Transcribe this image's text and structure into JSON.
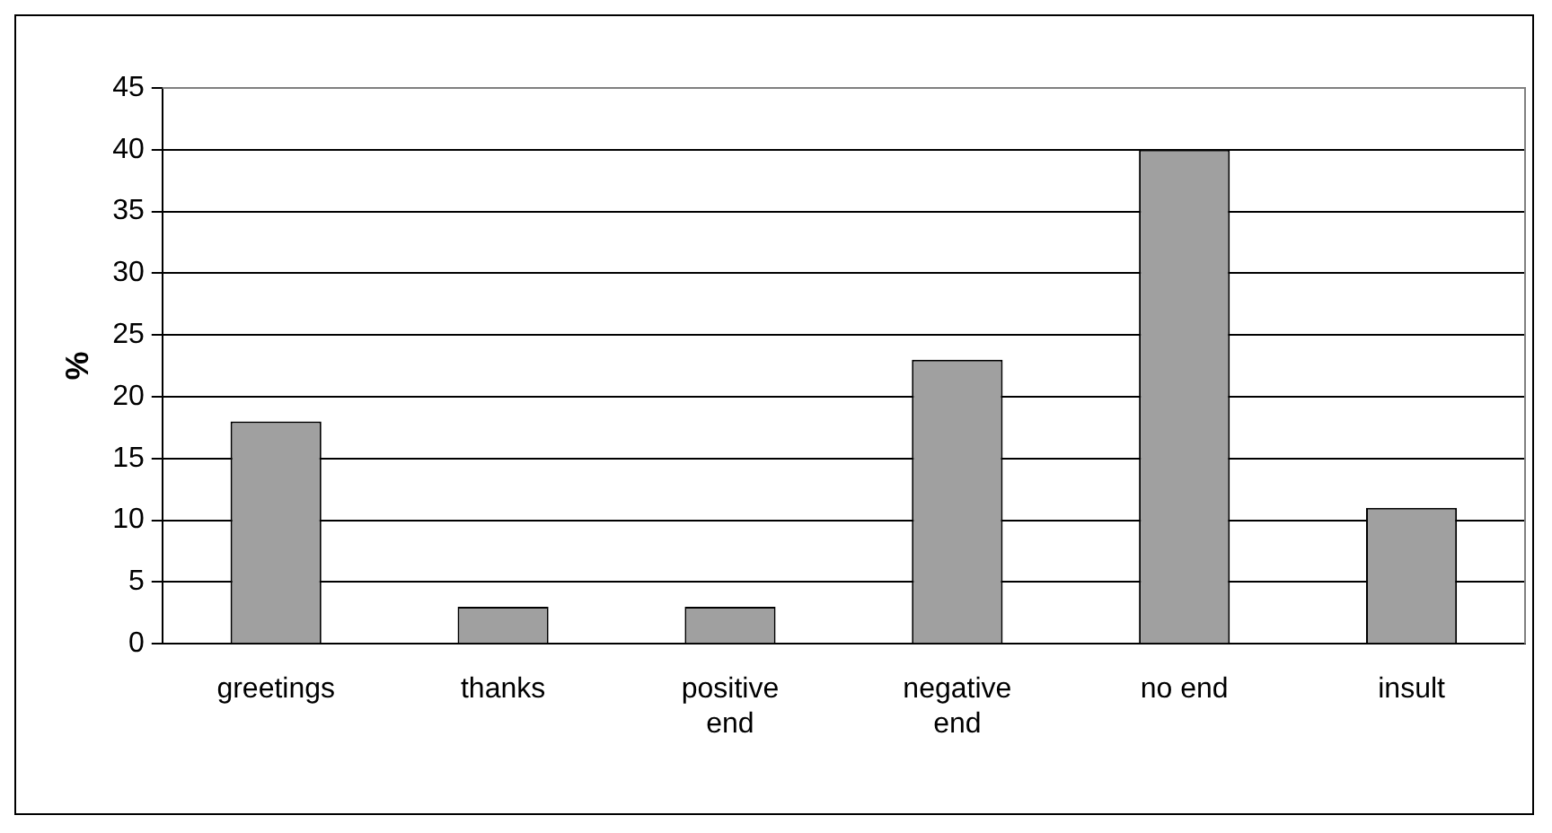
{
  "chart_data": {
    "type": "bar",
    "ylabel": "%",
    "categories": [
      "greetings",
      "thanks",
      "positive end",
      "negative end",
      "no end",
      "insult"
    ],
    "values": [
      18,
      3,
      3,
      23,
      40,
      11
    ],
    "color": "#a0a0a0",
    "ylim": [
      0,
      45
    ],
    "yticks": [
      0,
      5,
      10,
      15,
      20,
      25,
      30,
      35,
      40,
      45
    ],
    "grid": "y",
    "legend": false
  }
}
